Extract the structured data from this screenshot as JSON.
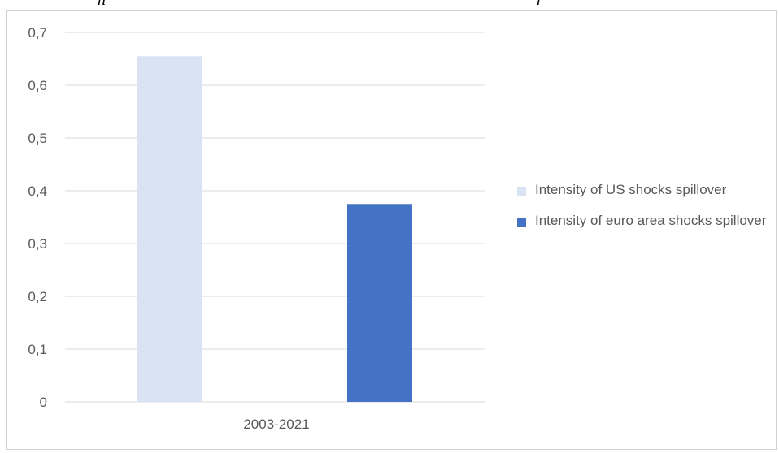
{
  "caption": {
    "text": "h",
    "math": "r"
  },
  "chart_data": {
    "type": "bar",
    "categories": [
      "2003-2021"
    ],
    "series": [
      {
        "name": "Intensity of US shocks spillover",
        "values": [
          0.655
        ],
        "color": "#dae3f3"
      },
      {
        "name": "Intensity of euro area shocks spillover",
        "values": [
          0.375
        ],
        "color": "#4472c4"
      }
    ],
    "yticks": [
      "0",
      "0,1",
      "0,2",
      "0,3",
      "0,4",
      "0,5",
      "0,6",
      "0,7"
    ],
    "ylim": [
      0,
      0.7
    ],
    "grid": true,
    "legend_position": "right",
    "gridline_color": "#d9d9d9"
  }
}
